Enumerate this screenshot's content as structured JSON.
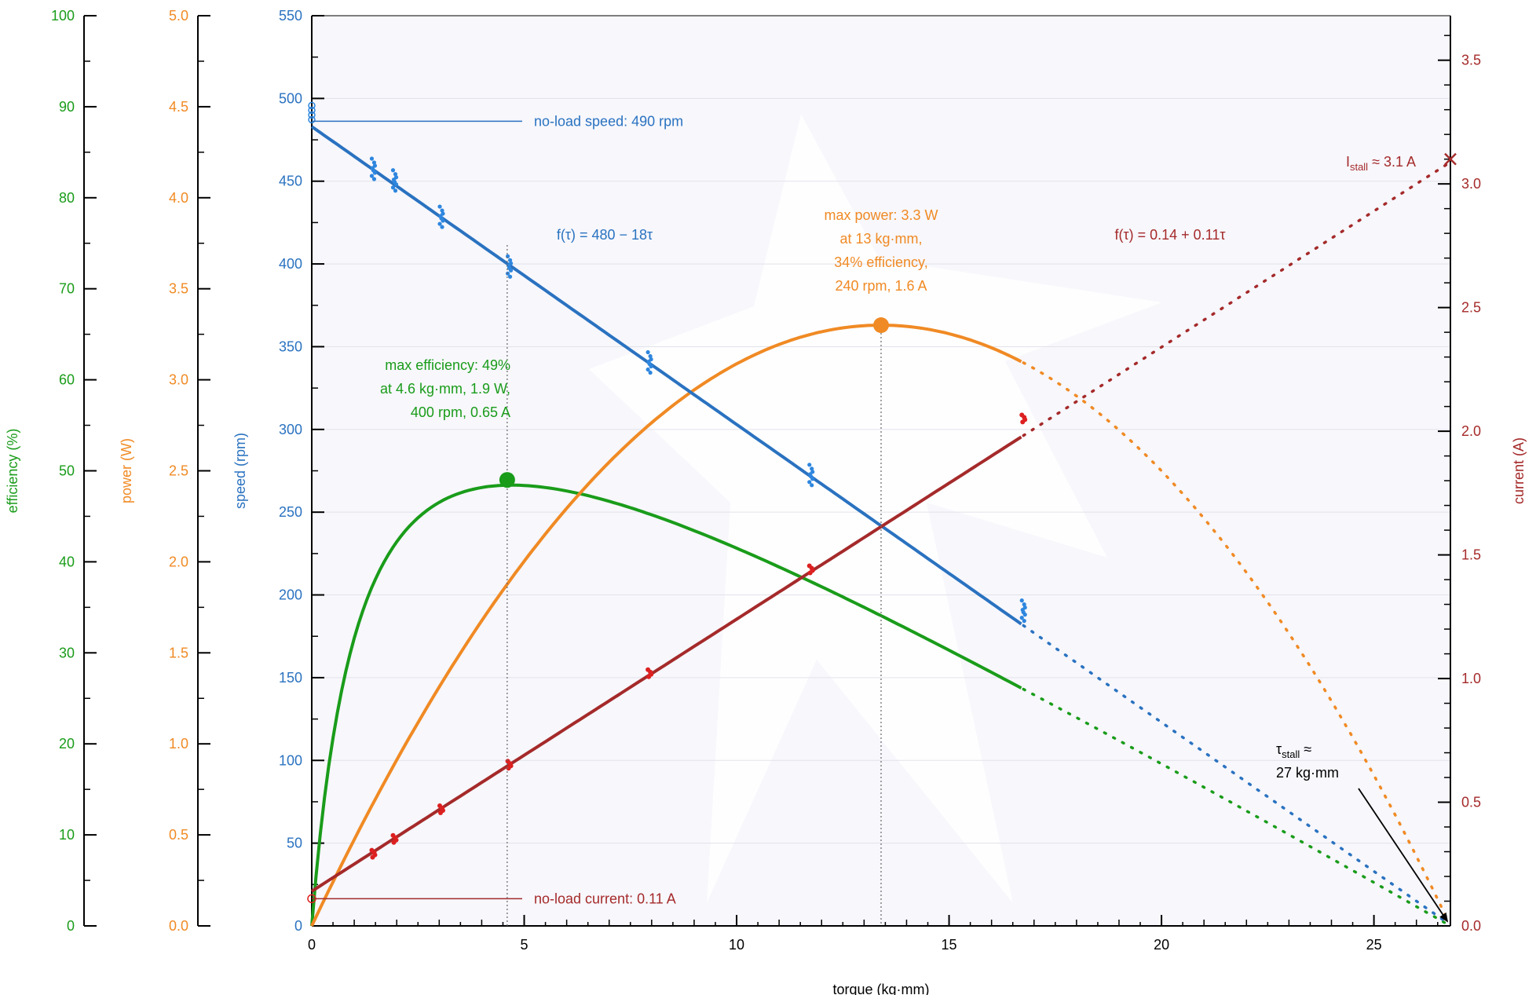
{
  "chart_data": {
    "type": "line",
    "title": "",
    "xlabel": "torque (kg·mm)",
    "xlim": [
      0,
      26.8
    ],
    "x_ticks": [
      "0",
      "5",
      "10",
      "15",
      "20",
      "25"
    ],
    "axes": {
      "efficiency": {
        "label": "efficiency (%)",
        "lim": [
          0,
          100
        ],
        "color": "#1a9c1a",
        "ticks": [
          "0",
          "10",
          "20",
          "30",
          "40",
          "50",
          "60",
          "70",
          "80",
          "90",
          "100"
        ]
      },
      "power": {
        "label": "power (W)",
        "lim": [
          0,
          5.0
        ],
        "color": "#f08a24",
        "ticks": [
          "0.0",
          "0.5",
          "1.0",
          "1.5",
          "2.0",
          "2.5",
          "3.0",
          "3.5",
          "4.0",
          "4.5",
          "5.0"
        ]
      },
      "speed": {
        "label": "speed (rpm)",
        "lim": [
          0,
          550
        ],
        "color": "#2a72c0",
        "ticks": [
          "0",
          "50",
          "100",
          "150",
          "200",
          "250",
          "300",
          "350",
          "400",
          "450",
          "500",
          "550"
        ]
      },
      "current": {
        "label": "current (A)",
        "lim": [
          0,
          3.68
        ],
        "color": "#a52a2a",
        "ticks": [
          "0.0",
          "0.5",
          "1.0",
          "1.5",
          "2.0",
          "2.5",
          "3.0",
          "3.5"
        ]
      }
    },
    "fits": {
      "speed": {
        "label": "f(τ) = 480 − 18τ",
        "intercept": 483,
        "slope": -18.0
      },
      "current": {
        "label": "f(τ) = 0.14 + 0.11τ",
        "intercept": 0.14,
        "slope": 0.11
      }
    },
    "measured_torque_max": 16.75,
    "stall_torque": 26.8,
    "measurements": {
      "speed": [
        {
          "x": 0,
          "y": 490
        },
        {
          "x": 1.45,
          "y": 457
        },
        {
          "x": 1.95,
          "y": 450
        },
        {
          "x": 3.05,
          "y": 428
        },
        {
          "x": 4.65,
          "y": 398
        },
        {
          "x": 7.95,
          "y": 340
        },
        {
          "x": 11.75,
          "y": 272
        },
        {
          "x": 16.75,
          "y": 190
        }
      ],
      "current": [
        {
          "x": 0,
          "y": 0.11
        },
        {
          "x": 1.45,
          "y": 0.29
        },
        {
          "x": 1.95,
          "y": 0.35
        },
        {
          "x": 3.05,
          "y": 0.47
        },
        {
          "x": 4.65,
          "y": 0.65
        },
        {
          "x": 7.95,
          "y": 1.02
        },
        {
          "x": 11.75,
          "y": 1.44
        },
        {
          "x": 16.75,
          "y": 2.05
        }
      ]
    },
    "annotations": {
      "no_load_speed": "no-load speed: 490 rpm",
      "no_load_current": "no-load current: 0.11 A",
      "max_efficiency": {
        "lines": [
          "max efficiency: 49%",
          "at 4.6 kg·mm, 1.9 W,",
          "400 rpm, 0.65 A"
        ],
        "torque": 4.6,
        "efficiency": 49
      },
      "max_power": {
        "lines": [
          "max power: 3.3 W",
          "at 13 kg·mm,",
          "34% efficiency,",
          "240 rpm, 1.6 A"
        ],
        "torque": 13.4,
        "power": 3.3
      },
      "stall_current": {
        "symbol": "I",
        "subscript": "stall",
        "rest": " ≈ 3.1 A",
        "value": 3.1
      },
      "stall_torque": {
        "symbol": "τ",
        "subscript": "stall",
        "line1_rest": " ≈",
        "line2": "27 kg·mm"
      }
    }
  }
}
